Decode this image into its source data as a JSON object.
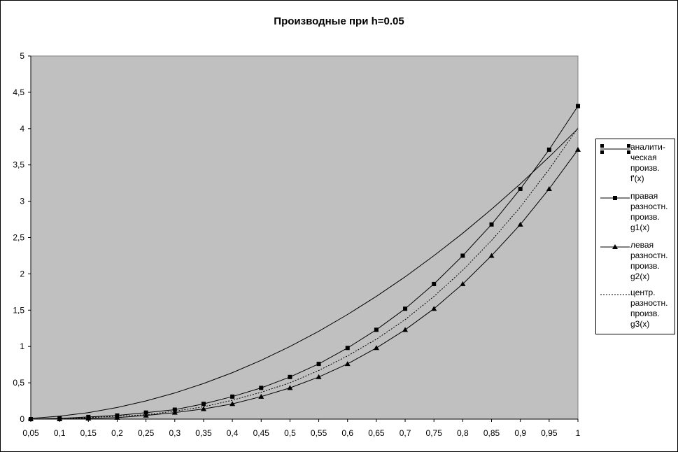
{
  "chart_data": {
    "type": "line",
    "title": "Производные при h=0.05",
    "xlabel": "",
    "ylabel": "",
    "categories": [
      "0,05",
      "0,1",
      "0,15",
      "0,2",
      "0,25",
      "0,3",
      "0,35",
      "0,4",
      "0,45",
      "0,5",
      "0,55",
      "0,6",
      "0,65",
      "0,7",
      "0,75",
      "0,8",
      "0,85",
      "0,9",
      "0,95",
      "1"
    ],
    "x": [
      0.05,
      0.1,
      0.15,
      0.2,
      0.25,
      0.3,
      0.35,
      0.4,
      0.45,
      0.5,
      0.55,
      0.6,
      0.65,
      0.7,
      0.75,
      0.8,
      0.85,
      0.9,
      0.95,
      1.0
    ],
    "ylim": [
      0,
      5
    ],
    "yticks": [
      0,
      0.5,
      1,
      1.5,
      2,
      2.5,
      3,
      3.5,
      4,
      4.5,
      5
    ],
    "ytick_labels": [
      "0",
      "0,5",
      "1",
      "1,5",
      "2",
      "2,5",
      "3",
      "3,5",
      "4",
      "4,5",
      "5"
    ],
    "grid": false,
    "plot_background": "#c0c0c0",
    "legend_position": "right",
    "series": [
      {
        "name": "аналити-ческая произв. f'(x)",
        "marker": "none",
        "style": "solid",
        "values": [
          0.01,
          0.04,
          0.09,
          0.16,
          0.25,
          0.36,
          0.49,
          0.64,
          0.81,
          1.0,
          1.21,
          1.44,
          1.69,
          1.96,
          2.25,
          2.56,
          2.89,
          3.24,
          3.61,
          4.0
        ]
      },
      {
        "name": "правая разностн. произв. g1(x)",
        "marker": "square",
        "style": "solid",
        "values": [
          0.0,
          0.01,
          0.03,
          0.05,
          0.09,
          0.13,
          0.21,
          0.31,
          0.43,
          0.58,
          0.76,
          0.98,
          1.23,
          1.52,
          1.86,
          2.25,
          2.68,
          3.17,
          3.71,
          4.31
        ]
      },
      {
        "name": "левая разностн. произв. g2(x)",
        "marker": "triangle",
        "style": "solid",
        "values": [
          0.0,
          0.0,
          0.01,
          0.02,
          0.05,
          0.09,
          0.14,
          0.21,
          0.31,
          0.43,
          0.58,
          0.76,
          0.98,
          1.23,
          1.52,
          1.86,
          2.25,
          2.68,
          3.17,
          3.71
        ]
      },
      {
        "name": "центр. разностн. произв. g3(x)",
        "marker": "none",
        "style": "dashed",
        "values": [
          0.0,
          0.01,
          0.02,
          0.04,
          0.06,
          0.11,
          0.17,
          0.26,
          0.37,
          0.5,
          0.67,
          0.87,
          1.1,
          1.37,
          1.69,
          2.05,
          2.46,
          2.92,
          3.44,
          4.01
        ]
      }
    ]
  }
}
